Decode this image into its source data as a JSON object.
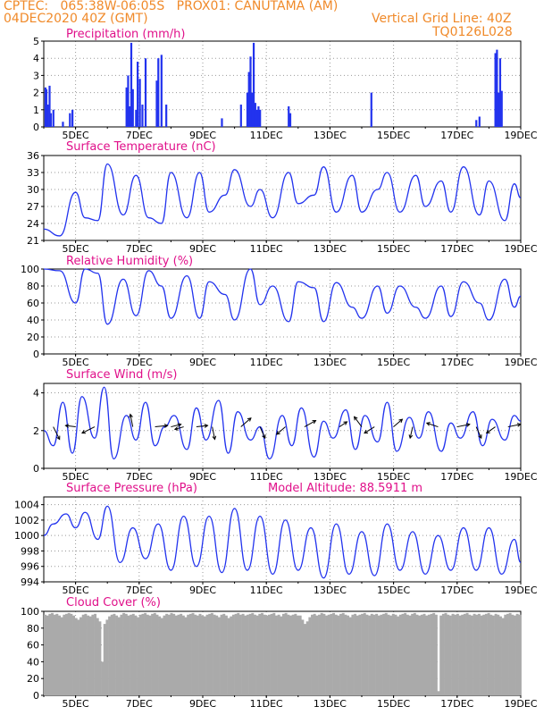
{
  "header": {
    "line1_left": "CPTEC:   065:38W-06:05S   PROX01: CANUTAMA (AM)",
    "line2_left": "04DEC2020 40Z (GMT)",
    "line2_right": "Vertical Grid Line: 40Z",
    "line3_right": "TQ0126L028"
  },
  "x_ticks": [
    "5DEC",
    "7DEC",
    "9DEC",
    "11DEC",
    "13DEC",
    "15DEC",
    "17DEC",
    "19DEC"
  ],
  "colors": {
    "header": "#f08a2a",
    "title": "#e0108a",
    "series": "#2233ee",
    "cloud": "#aaaaaa",
    "arrow": "#000000"
  },
  "chart_data": [
    {
      "id": "precip",
      "type": "bar",
      "title": "Precipitation (mm/h)",
      "ylim": [
        0,
        5
      ],
      "yticks": [
        0,
        1,
        2,
        3,
        4,
        5
      ],
      "x": [
        4.05,
        4.08,
        4.12,
        4.18,
        4.22,
        4.3,
        4.6,
        4.82,
        4.9,
        6.6,
        6.65,
        6.7,
        6.75,
        6.8,
        6.9,
        6.95,
        7.02,
        7.1,
        7.2,
        7.55,
        7.6,
        7.7,
        7.85,
        9.6,
        10.2,
        10.4,
        10.45,
        10.5,
        10.55,
        10.6,
        10.65,
        10.7,
        10.75,
        10.8,
        11.7,
        11.75,
        14.3,
        17.6,
        17.7,
        18.2,
        18.25,
        18.3,
        18.35,
        18.4
      ],
      "values": [
        2.3,
        2.2,
        1.3,
        2.4,
        0.8,
        1.0,
        0.3,
        0.8,
        1.0,
        2.3,
        3.0,
        1.2,
        4.9,
        2.2,
        1.0,
        3.8,
        2.8,
        1.3,
        4.0,
        2.7,
        4.0,
        4.2,
        1.3,
        0.5,
        1.3,
        2.0,
        3.2,
        4.1,
        2.0,
        4.9,
        1.4,
        1.0,
        1.2,
        1.0,
        1.2,
        0.8,
        2.0,
        0.4,
        0.6,
        4.3,
        4.5,
        2.0,
        4.0,
        2.1
      ]
    },
    {
      "id": "temp",
      "type": "line",
      "title": "Surface Temperature (nC)",
      "ylim": [
        21,
        36
      ],
      "yticks": [
        21,
        24,
        27,
        30,
        33,
        36
      ],
      "x": [
        4.0,
        4.5,
        5.0,
        5.3,
        5.7,
        6.0,
        6.5,
        6.9,
        7.3,
        7.7,
        8.0,
        8.5,
        8.9,
        9.2,
        9.7,
        10.0,
        10.5,
        10.8,
        11.2,
        11.7,
        12.0,
        12.5,
        12.8,
        13.2,
        13.7,
        14.0,
        14.5,
        14.8,
        15.2,
        15.7,
        16.0,
        16.5,
        16.8,
        17.2,
        17.7,
        18.0,
        18.5,
        18.8,
        19.0
      ],
      "values": [
        23,
        21.8,
        29.5,
        25,
        24.5,
        34.5,
        25.5,
        32.5,
        25,
        24,
        33,
        25,
        33,
        26,
        29,
        33.5,
        27,
        30,
        25,
        33,
        27.5,
        29,
        34,
        26,
        32.5,
        26,
        30,
        33,
        26,
        32.5,
        27,
        31.5,
        26,
        34,
        25.5,
        31.5,
        24.5,
        31,
        28.5
      ]
    },
    {
      "id": "rh",
      "type": "line",
      "title": "Relative Humidity (%)",
      "ylim": [
        0,
        100
      ],
      "yticks": [
        0,
        20,
        40,
        60,
        80,
        100
      ],
      "x": [
        4.0,
        4.5,
        5.0,
        5.3,
        5.7,
        6.0,
        6.5,
        6.9,
        7.3,
        7.7,
        8.0,
        8.5,
        8.9,
        9.2,
        9.7,
        10.0,
        10.5,
        10.8,
        11.2,
        11.7,
        12.0,
        12.5,
        12.8,
        13.2,
        13.7,
        14.0,
        14.5,
        14.8,
        15.2,
        15.7,
        16.0,
        16.5,
        16.8,
        17.2,
        17.7,
        18.0,
        18.5,
        18.8,
        19.0
      ],
      "values": [
        100,
        98,
        60,
        100,
        95,
        35,
        88,
        45,
        98,
        80,
        42,
        92,
        42,
        85,
        70,
        40,
        100,
        58,
        80,
        38,
        85,
        78,
        38,
        84,
        55,
        42,
        80,
        48,
        80,
        55,
        42,
        80,
        44,
        85,
        60,
        40,
        88,
        55,
        68
      ]
    },
    {
      "id": "wind",
      "type": "line",
      "title": "Surface Wind (m/s)",
      "ylim": [
        0,
        4.5
      ],
      "yticks": [
        0,
        2,
        4
      ],
      "x": [
        4.0,
        4.3,
        4.6,
        4.9,
        5.2,
        5.6,
        5.9,
        6.2,
        6.6,
        6.9,
        7.2,
        7.5,
        7.8,
        8.1,
        8.5,
        8.8,
        9.1,
        9.5,
        9.8,
        10.1,
        10.5,
        10.8,
        11.1,
        11.5,
        11.8,
        12.1,
        12.5,
        12.8,
        13.1,
        13.5,
        13.8,
        14.1,
        14.5,
        14.8,
        15.1,
        15.5,
        15.8,
        16.1,
        16.5,
        16.8,
        17.1,
        17.5,
        17.8,
        18.1,
        18.5,
        18.8,
        19.0
      ],
      "values": [
        2.0,
        1.2,
        3.5,
        0.8,
        3.8,
        1.6,
        4.3,
        0.5,
        2.8,
        1.5,
        3.5,
        1.2,
        2.2,
        2.8,
        1.0,
        3.2,
        1.5,
        3.6,
        0.8,
        3.0,
        1.5,
        2.2,
        0.5,
        2.8,
        1.2,
        3.2,
        0.6,
        2.5,
        1.6,
        3.1,
        1.0,
        2.8,
        1.4,
        3.5,
        0.9,
        2.7,
        1.6,
        3.0,
        0.9,
        2.4,
        1.6,
        3.0,
        1.2,
        2.6,
        1.5,
        2.8,
        2.5
      ],
      "arrows": [
        {
          "x": 4.3,
          "dx": 0.5,
          "dy": -1
        },
        {
          "x": 5.0,
          "dx": -0.8,
          "dy": 0.1
        },
        {
          "x": 5.6,
          "dx": -1,
          "dy": -0.5
        },
        {
          "x": 6.8,
          "dx": -0.2,
          "dy": 1
        },
        {
          "x": 7.5,
          "dx": 1,
          "dy": 0.1
        },
        {
          "x": 8.0,
          "dx": 0.8,
          "dy": 0.2
        },
        {
          "x": 8.4,
          "dx": -0.7,
          "dy": -0.2
        },
        {
          "x": 8.8,
          "dx": 0.9,
          "dy": 0.1
        },
        {
          "x": 9.3,
          "dx": 0.2,
          "dy": -1
        },
        {
          "x": 10.2,
          "dx": 0.8,
          "dy": 0.7
        },
        {
          "x": 10.8,
          "dx": 0.4,
          "dy": -0.9
        },
        {
          "x": 11.6,
          "dx": -0.7,
          "dy": -0.6
        },
        {
          "x": 12.2,
          "dx": 0.9,
          "dy": 0.5
        },
        {
          "x": 13.3,
          "dx": 0.6,
          "dy": 0.4
        },
        {
          "x": 14.0,
          "dx": -0.6,
          "dy": 0.8
        },
        {
          "x": 14.4,
          "dx": -0.8,
          "dy": -0.5
        },
        {
          "x": 15.0,
          "dx": 0.7,
          "dy": 0.6
        },
        {
          "x": 15.6,
          "dx": -0.2,
          "dy": -0.9
        },
        {
          "x": 16.4,
          "dx": -0.9,
          "dy": 0.3
        },
        {
          "x": 17.0,
          "dx": 1,
          "dy": 0.2
        },
        {
          "x": 17.6,
          "dx": 0.4,
          "dy": -0.9
        },
        {
          "x": 18.2,
          "dx": -0.7,
          "dy": -0.5
        },
        {
          "x": 18.6,
          "dx": 1,
          "dy": 0.2
        }
      ]
    },
    {
      "id": "pressure",
      "type": "line",
      "title": "Surface Pressure (hPa)",
      "subtitle": "Model Altitude: 88.5911 m",
      "ylim": [
        994,
        1005
      ],
      "yticks": [
        994,
        996,
        998,
        1000,
        1002,
        1004
      ],
      "x": [
        4.0,
        4.3,
        4.7,
        5.0,
        5.3,
        5.7,
        6.0,
        6.4,
        6.8,
        7.2,
        7.6,
        8.0,
        8.4,
        8.8,
        9.2,
        9.6,
        10.0,
        10.4,
        10.8,
        11.2,
        11.6,
        12.0,
        12.4,
        12.8,
        13.2,
        13.6,
        14.0,
        14.4,
        14.8,
        15.2,
        15.6,
        16.0,
        16.4,
        16.8,
        17.2,
        17.6,
        18.0,
        18.4,
        18.8,
        19.0
      ],
      "values": [
        1000,
        1001.5,
        1002.8,
        1001,
        1003,
        999.5,
        1003.8,
        996.5,
        1001,
        997,
        1001.5,
        995.5,
        1002.5,
        996,
        1002.5,
        995.2,
        1003.5,
        995.5,
        1002.5,
        995,
        1002,
        995.5,
        1001,
        994.5,
        1001.5,
        995,
        1000.5,
        994.8,
        1001.5,
        995.5,
        1000.5,
        995,
        1000,
        995.5,
        1001,
        995.5,
        1001,
        995,
        999.5,
        996.5
      ]
    },
    {
      "id": "cloud",
      "type": "bar",
      "title": "Cloud Cover (%)",
      "ylim": [
        0,
        100
      ],
      "yticks": [
        0,
        20,
        40,
        60,
        80,
        100
      ],
      "x_start": 4.0,
      "x_step": 0.075,
      "values": [
        96,
        95,
        97,
        98,
        96,
        97,
        95,
        93,
        96,
        97,
        98,
        97,
        95,
        92,
        90,
        93,
        96,
        97,
        95,
        94,
        96,
        97,
        92,
        88,
        40,
        85,
        90,
        94,
        96,
        97,
        95,
        93,
        96,
        98,
        97,
        95,
        96,
        97,
        95,
        93,
        96,
        97,
        98,
        96,
        95,
        97,
        98,
        96,
        94,
        92,
        95,
        97,
        96,
        98,
        97,
        95,
        96,
        97,
        95,
        93,
        96,
        97,
        98,
        96,
        95,
        97,
        95,
        94,
        96,
        97,
        98,
        96,
        95,
        93,
        96,
        97,
        95,
        92,
        94,
        96,
        97,
        98,
        96,
        97,
        95,
        96,
        97,
        98,
        96,
        95,
        97,
        98,
        96,
        95,
        96,
        97,
        98,
        95,
        96,
        94,
        97,
        98,
        96,
        95,
        96,
        97,
        95,
        95,
        90,
        85,
        88,
        93,
        96,
        97,
        95,
        96,
        98,
        97,
        95,
        96,
        97,
        98,
        96,
        95,
        97,
        98,
        96,
        95,
        93,
        96,
        97,
        95,
        96,
        97,
        98,
        96,
        95,
        97,
        96,
        97,
        95,
        96,
        97,
        98,
        96,
        95,
        97,
        96,
        94,
        96,
        97,
        98,
        96,
        95,
        97,
        98,
        96,
        95,
        96,
        97,
        95,
        96,
        97,
        98,
        96,
        5,
        95,
        97,
        98,
        96,
        95,
        97,
        96,
        97,
        95,
        96,
        97,
        98,
        96,
        95,
        97,
        96,
        97,
        95,
        96,
        97,
        98,
        96,
        95,
        97,
        96,
        94,
        92,
        96,
        97,
        98,
        96,
        95,
        97,
        96,
        97,
        95,
        96,
        97,
        98,
        96,
        95,
        97,
        96,
        97
      ]
    }
  ],
  "panel_labels": {
    "precip": "Precipitation (mm/h)",
    "temp": "Surface Temperature (nC)",
    "rh": "Relative Humidity (%)",
    "wind": "Surface Wind (m/s)",
    "pressure": "Surface Pressure (hPa)",
    "pressure_sub": "Model Altitude: 88.5911 m",
    "cloud": "Cloud Cover (%)"
  }
}
